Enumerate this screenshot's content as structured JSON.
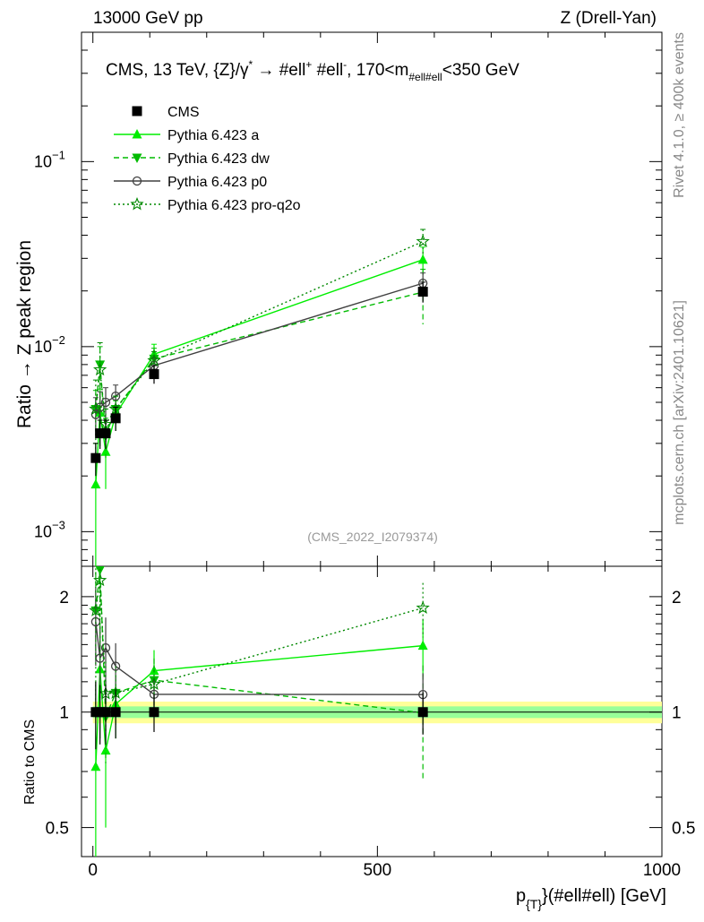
{
  "header": {
    "left": "13000 GeV pp",
    "right": "Z (Drell-Yan)"
  },
  "side_labels": {
    "rivet": "Rivet 4.1.0, ≥ 400k events",
    "mcplots": "mcplots.cern.ch [arXiv:2401.10621]"
  },
  "chart_data": {
    "type": "line",
    "title": "CMS, 13 TeV, {Z}/γ* → #ell+ #ell-, 170<m_{#ell#ell}<350 GeV",
    "title_parts": {
      "prefix": "CMS, 13 TeV, {Z}/γ",
      "star": "*",
      "arrow": " →  #ell",
      "plus": "+",
      "mid": " #ell",
      "minus": "-",
      "mass": ", 170<m",
      "mass_sub": "#ell#ell",
      "suffix": "<350 GeV"
    },
    "analysis_id": "(CMS_2022_I2079374)",
    "ylabel": "Ratio → Z peak region",
    "ratio_ylabel": "Ratio to CMS",
    "xlabel": "p_{T}(#ell#ell) [GeV]",
    "xlabel_parts": {
      "p": "p",
      "sub": "{T}",
      "rest": "}(#ell#ell) [GeV]"
    },
    "xlim": [
      -20,
      1000
    ],
    "ylim": [
      0.00065,
      0.5
    ],
    "yscale": "log",
    "ratio_ylim": [
      0.42,
      2.4
    ],
    "ratio_yscale": "log",
    "x_ticks": [
      "0",
      "500",
      "1000"
    ],
    "y_ticks": [
      {
        "base": "10",
        "exp": "−1"
      },
      {
        "base": "10",
        "exp": "−2"
      },
      {
        "base": "10",
        "exp": "−3"
      }
    ],
    "ratio_ticks": [
      "2",
      "1",
      "0.5"
    ],
    "legend_position": "top-left",
    "x": [
      5,
      12.5,
      22.5,
      40,
      107.5,
      580
    ],
    "series": [
      {
        "name": "CMS",
        "color": "#000000",
        "marker": "square",
        "line": "none",
        "values": [
          0.0025,
          0.0034,
          0.0034,
          0.0041,
          0.0071,
          0.0198
        ],
        "err": [
          0.0005,
          0.0006,
          0.0006,
          0.0006,
          0.0008,
          0.0025
        ]
      },
      {
        "name": "Pythia 6.423 a",
        "color": "#00ee00",
        "marker": "triangle-up",
        "line": "solid",
        "values": [
          0.0018,
          0.0044,
          0.0027,
          0.0043,
          0.0091,
          0.0295
        ],
        "err": [
          0.0012,
          0.0015,
          0.001,
          0.0008,
          0.0012,
          0.005
        ]
      },
      {
        "name": "Pythia 6.423 dw",
        "color": "#00bb00",
        "marker": "triangle-down",
        "line": "dashed",
        "values": [
          0.0046,
          0.008,
          0.0033,
          0.0046,
          0.0086,
          0.0197
        ],
        "err": [
          0.0012,
          0.002,
          0.0008,
          0.0008,
          0.0012,
          0.0065
        ]
      },
      {
        "name": "Pythia 6.423 p0",
        "color": "#404040",
        "marker": "circle-open",
        "line": "solid",
        "values": [
          0.0043,
          0.0047,
          0.005,
          0.0054,
          0.0079,
          0.022
        ],
        "err": [
          0.001,
          0.001,
          0.001,
          0.0008,
          0.0008,
          0.003
        ]
      },
      {
        "name": "Pythia 6.423 pro-q2o",
        "color": "#008800",
        "marker": "star-open",
        "line": "dotted",
        "values": [
          0.0046,
          0.0075,
          0.0038,
          0.0046,
          0.0084,
          0.037
        ],
        "err": [
          0.002,
          0.003,
          0.0008,
          0.0008,
          0.001,
          0.006
        ]
      }
    ],
    "ratio_band": {
      "inner": 0.035,
      "outer": 0.065
    }
  }
}
